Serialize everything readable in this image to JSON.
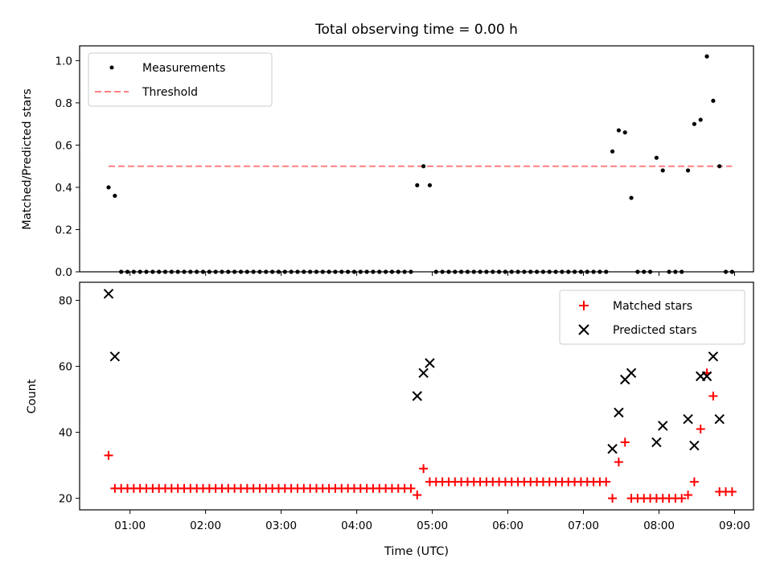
{
  "title": "Total observing time = 0.00 h",
  "colors": {
    "threshold": "#ff7f7f",
    "matched": "#ff0000",
    "predicted": "#000000",
    "measurement": "#000000"
  },
  "chart_data": [
    {
      "type": "scatter",
      "ylabel": "Matched/Predicted stars",
      "xlabel": "",
      "xlim": [
        "00:20",
        "09:15"
      ],
      "ylim": [
        0,
        1.07
      ],
      "yticks": [
        "0.0",
        "0.2",
        "0.4",
        "0.6",
        "0.8",
        "1.0"
      ],
      "grid": false,
      "legend": "top-left",
      "series": [
        {
          "name": "Measurements",
          "marker": "dot",
          "points": [
            [
              "00:43",
              0.4
            ],
            [
              "00:48",
              0.36
            ],
            [
              "00:53",
              0
            ],
            [
              "00:58",
              0
            ],
            [
              "01:03",
              0
            ],
            [
              "01:08",
              0
            ],
            [
              "01:13",
              0
            ],
            [
              "01:18",
              0
            ],
            [
              "01:23",
              0
            ],
            [
              "01:28",
              0
            ],
            [
              "01:33",
              0
            ],
            [
              "01:38",
              0
            ],
            [
              "01:43",
              0
            ],
            [
              "01:48",
              0
            ],
            [
              "01:53",
              0
            ],
            [
              "01:58",
              0
            ],
            [
              "02:03",
              0
            ],
            [
              "02:08",
              0
            ],
            [
              "02:13",
              0
            ],
            [
              "02:18",
              0
            ],
            [
              "02:23",
              0
            ],
            [
              "02:28",
              0
            ],
            [
              "02:33",
              0
            ],
            [
              "02:38",
              0
            ],
            [
              "02:43",
              0
            ],
            [
              "02:48",
              0
            ],
            [
              "02:53",
              0
            ],
            [
              "02:58",
              0
            ],
            [
              "03:03",
              0
            ],
            [
              "03:08",
              0
            ],
            [
              "03:13",
              0
            ],
            [
              "03:18",
              0
            ],
            [
              "03:23",
              0
            ],
            [
              "03:28",
              0
            ],
            [
              "03:33",
              0
            ],
            [
              "03:38",
              0
            ],
            [
              "03:43",
              0
            ],
            [
              "03:48",
              0
            ],
            [
              "03:53",
              0
            ],
            [
              "03:58",
              0
            ],
            [
              "04:03",
              0
            ],
            [
              "04:08",
              0
            ],
            [
              "04:13",
              0
            ],
            [
              "04:18",
              0
            ],
            [
              "04:23",
              0
            ],
            [
              "04:28",
              0
            ],
            [
              "04:33",
              0
            ],
            [
              "04:38",
              0
            ],
            [
              "04:43",
              0
            ],
            [
              "04:48",
              0.41
            ],
            [
              "04:53",
              0.5
            ],
            [
              "04:58",
              0.41
            ],
            [
              "05:03",
              0
            ],
            [
              "05:08",
              0
            ],
            [
              "05:13",
              0
            ],
            [
              "05:18",
              0
            ],
            [
              "05:23",
              0
            ],
            [
              "05:28",
              0
            ],
            [
              "05:33",
              0
            ],
            [
              "05:38",
              0
            ],
            [
              "05:43",
              0
            ],
            [
              "05:48",
              0
            ],
            [
              "05:53",
              0
            ],
            [
              "05:58",
              0
            ],
            [
              "06:03",
              0
            ],
            [
              "06:08",
              0
            ],
            [
              "06:13",
              0
            ],
            [
              "06:18",
              0
            ],
            [
              "06:23",
              0
            ],
            [
              "06:28",
              0
            ],
            [
              "06:33",
              0
            ],
            [
              "06:38",
              0
            ],
            [
              "06:43",
              0
            ],
            [
              "06:48",
              0
            ],
            [
              "06:53",
              0
            ],
            [
              "06:58",
              0
            ],
            [
              "07:03",
              0
            ],
            [
              "07:08",
              0
            ],
            [
              "07:13",
              0
            ],
            [
              "07:18",
              0
            ],
            [
              "07:23",
              0.57
            ],
            [
              "07:28",
              0.67
            ],
            [
              "07:33",
              0.66
            ],
            [
              "07:38",
              0.35
            ],
            [
              "07:43",
              0
            ],
            [
              "07:48",
              0
            ],
            [
              "07:53",
              0
            ],
            [
              "07:58",
              0.54
            ],
            [
              "08:03",
              0.48
            ],
            [
              "08:08",
              0
            ],
            [
              "08:13",
              0
            ],
            [
              "08:18",
              0
            ],
            [
              "08:23",
              0.48
            ],
            [
              "08:28",
              0.7
            ],
            [
              "08:33",
              0.72
            ],
            [
              "08:38",
              1.02
            ],
            [
              "08:43",
              0.81
            ],
            [
              "08:48",
              0.5
            ],
            [
              "08:53",
              0
            ],
            [
              "08:58",
              0
            ]
          ]
        },
        {
          "name": "Threshold",
          "marker": "dashed-line",
          "points": [
            [
              "00:43",
              0.5
            ],
            [
              "08:58",
              0.5
            ]
          ]
        }
      ]
    },
    {
      "type": "scatter",
      "ylabel": "Count",
      "xlabel": "Time (UTC)",
      "xlim": [
        "00:20",
        "09:15"
      ],
      "ylim": [
        16.5,
        85.5
      ],
      "yticks": [
        "20",
        "40",
        "60",
        "80"
      ],
      "xticks": [
        "01:00",
        "02:00",
        "03:00",
        "04:00",
        "05:00",
        "06:00",
        "07:00",
        "08:00",
        "09:00"
      ],
      "grid": false,
      "legend": "top-right",
      "series": [
        {
          "name": "Matched stars",
          "marker": "plus",
          "points": [
            [
              "00:43",
              33
            ],
            [
              "00:48",
              23
            ],
            [
              "00:53",
              23
            ],
            [
              "00:58",
              23
            ],
            [
              "01:03",
              23
            ],
            [
              "01:08",
              23
            ],
            [
              "01:13",
              23
            ],
            [
              "01:18",
              23
            ],
            [
              "01:23",
              23
            ],
            [
              "01:28",
              23
            ],
            [
              "01:33",
              23
            ],
            [
              "01:38",
              23
            ],
            [
              "01:43",
              23
            ],
            [
              "01:48",
              23
            ],
            [
              "01:53",
              23
            ],
            [
              "01:58",
              23
            ],
            [
              "02:03",
              23
            ],
            [
              "02:08",
              23
            ],
            [
              "02:13",
              23
            ],
            [
              "02:18",
              23
            ],
            [
              "02:23",
              23
            ],
            [
              "02:28",
              23
            ],
            [
              "02:33",
              23
            ],
            [
              "02:38",
              23
            ],
            [
              "02:43",
              23
            ],
            [
              "02:48",
              23
            ],
            [
              "02:53",
              23
            ],
            [
              "02:58",
              23
            ],
            [
              "03:03",
              23
            ],
            [
              "03:08",
              23
            ],
            [
              "03:13",
              23
            ],
            [
              "03:18",
              23
            ],
            [
              "03:23",
              23
            ],
            [
              "03:28",
              23
            ],
            [
              "03:33",
              23
            ],
            [
              "03:38",
              23
            ],
            [
              "03:43",
              23
            ],
            [
              "03:48",
              23
            ],
            [
              "03:53",
              23
            ],
            [
              "03:58",
              23
            ],
            [
              "04:03",
              23
            ],
            [
              "04:08",
              23
            ],
            [
              "04:13",
              23
            ],
            [
              "04:18",
              23
            ],
            [
              "04:23",
              23
            ],
            [
              "04:28",
              23
            ],
            [
              "04:33",
              23
            ],
            [
              "04:38",
              23
            ],
            [
              "04:43",
              23
            ],
            [
              "04:48",
              21
            ],
            [
              "04:53",
              29
            ],
            [
              "04:58",
              25
            ],
            [
              "05:03",
              25
            ],
            [
              "05:08",
              25
            ],
            [
              "05:13",
              25
            ],
            [
              "05:18",
              25
            ],
            [
              "05:23",
              25
            ],
            [
              "05:28",
              25
            ],
            [
              "05:33",
              25
            ],
            [
              "05:38",
              25
            ],
            [
              "05:43",
              25
            ],
            [
              "05:48",
              25
            ],
            [
              "05:53",
              25
            ],
            [
              "05:58",
              25
            ],
            [
              "06:03",
              25
            ],
            [
              "06:08",
              25
            ],
            [
              "06:13",
              25
            ],
            [
              "06:18",
              25
            ],
            [
              "06:23",
              25
            ],
            [
              "06:28",
              25
            ],
            [
              "06:33",
              25
            ],
            [
              "06:38",
              25
            ],
            [
              "06:43",
              25
            ],
            [
              "06:48",
              25
            ],
            [
              "06:53",
              25
            ],
            [
              "06:58",
              25
            ],
            [
              "07:03",
              25
            ],
            [
              "07:08",
              25
            ],
            [
              "07:13",
              25
            ],
            [
              "07:18",
              25
            ],
            [
              "07:23",
              20
            ],
            [
              "07:28",
              31
            ],
            [
              "07:33",
              37
            ],
            [
              "07:38",
              20
            ],
            [
              "07:43",
              20
            ],
            [
              "07:48",
              20
            ],
            [
              "07:53",
              20
            ],
            [
              "07:58",
              20
            ],
            [
              "08:03",
              20
            ],
            [
              "08:08",
              20
            ],
            [
              "08:13",
              20
            ],
            [
              "08:18",
              20
            ],
            [
              "08:23",
              21
            ],
            [
              "08:28",
              25
            ],
            [
              "08:33",
              41
            ],
            [
              "08:38",
              58
            ],
            [
              "08:43",
              51
            ],
            [
              "08:48",
              22
            ],
            [
              "08:53",
              22
            ],
            [
              "08:58",
              22
            ]
          ]
        },
        {
          "name": "Predicted stars",
          "marker": "x",
          "points": [
            [
              "00:43",
              82
            ],
            [
              "00:48",
              63
            ],
            [
              "04:48",
              51
            ],
            [
              "04:53",
              58
            ],
            [
              "04:58",
              61
            ],
            [
              "07:23",
              35
            ],
            [
              "07:28",
              46
            ],
            [
              "07:33",
              56
            ],
            [
              "07:38",
              58
            ],
            [
              "07:58",
              37
            ],
            [
              "08:03",
              42
            ],
            [
              "08:23",
              44
            ],
            [
              "08:28",
              36
            ],
            [
              "08:33",
              57
            ],
            [
              "08:38",
              57
            ],
            [
              "08:43",
              63
            ],
            [
              "08:48",
              44
            ]
          ]
        }
      ]
    }
  ]
}
